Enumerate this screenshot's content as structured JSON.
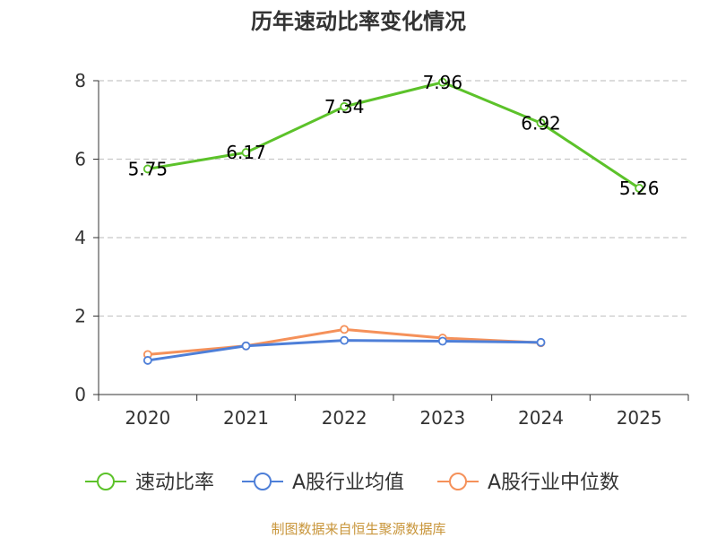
{
  "chart_data": {
    "type": "line",
    "title": "历年速动比率变化情况",
    "categories": [
      "2020",
      "2021",
      "2022",
      "2023",
      "2024",
      "2025"
    ],
    "ylim": [
      0,
      8
    ],
    "yticks": [
      "0",
      "2",
      "4",
      "6",
      "8"
    ],
    "xlabel": "",
    "ylabel": "",
    "grid": true,
    "legend_position": "bottom",
    "series": [
      {
        "name": "速动比率",
        "color": "#5cc22a",
        "values": [
          5.75,
          6.17,
          7.34,
          7.96,
          6.92,
          5.26
        ],
        "labels": [
          "5.75",
          "6.17",
          "7.34",
          "7.96",
          "6.92",
          "5.26"
        ]
      },
      {
        "name": "A股行业均值",
        "color": "#4e7fd8",
        "values": [
          0.87,
          1.24,
          1.38,
          1.36,
          1.33,
          null
        ]
      },
      {
        "name": "A股行业中位数",
        "color": "#f5915a",
        "values": [
          1.02,
          1.24,
          1.66,
          1.44,
          1.32,
          null
        ]
      }
    ]
  },
  "source": {
    "text": "制图数据来自恒生聚源数据库",
    "color": "#c8953a"
  }
}
